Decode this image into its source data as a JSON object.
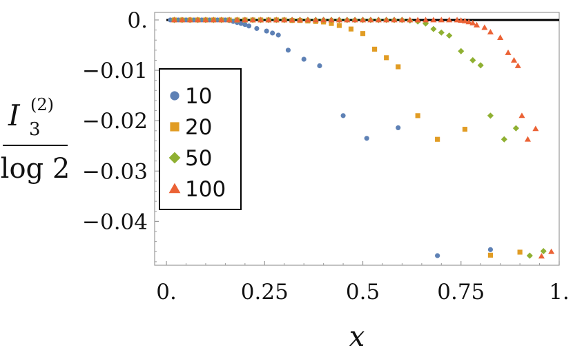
{
  "chart_data": {
    "type": "scatter",
    "xlabel": "x",
    "ylabel": {
      "symbol": "I",
      "subscript": "3",
      "superscript": "(2)",
      "denominator": "log 2"
    },
    "xlim": [
      -0.03,
      1.0
    ],
    "ylim": [
      -0.0487,
      0.0015
    ],
    "x_ticks": [
      0,
      0.25,
      0.5,
      0.75,
      1.0
    ],
    "x_tick_labels": [
      "0.",
      "0.25",
      "0.5",
      "0.75",
      "1."
    ],
    "y_ticks": [
      0,
      -0.01,
      -0.02,
      -0.03,
      -0.04
    ],
    "y_tick_labels": [
      "0.",
      "−0.01",
      "−0.02",
      "−0.03",
      "−0.04"
    ],
    "grid": false,
    "legend": {
      "position": "left-center",
      "entries": [
        "10",
        "20",
        "50",
        "100"
      ]
    },
    "reference_line": {
      "y": 0,
      "color": "#000000"
    },
    "series": [
      {
        "name": "10",
        "marker": "circle",
        "color": "#5E81B5",
        "points": [
          [
            0.01,
            0
          ],
          [
            0.02,
            0
          ],
          [
            0.03,
            0
          ],
          [
            0.04,
            0
          ],
          [
            0.05,
            0
          ],
          [
            0.06,
            0
          ],
          [
            0.07,
            0
          ],
          [
            0.08,
            0
          ],
          [
            0.09,
            0
          ],
          [
            0.1,
            0
          ],
          [
            0.11,
            0
          ],
          [
            0.12,
            0
          ],
          [
            0.13,
            0
          ],
          [
            0.14,
            0
          ],
          [
            0.15,
            0
          ],
          [
            0.16,
            -0.0001
          ],
          [
            0.17,
            -0.0003
          ],
          [
            0.18,
            -0.0005
          ],
          [
            0.19,
            -0.0007
          ],
          [
            0.2,
            -0.0009
          ],
          [
            0.21,
            -0.0012
          ],
          [
            0.23,
            -0.0017
          ],
          [
            0.255,
            -0.0022
          ],
          [
            0.27,
            -0.0026
          ],
          [
            0.285,
            -0.003
          ],
          [
            0.31,
            -0.006
          ],
          [
            0.35,
            -0.0078
          ],
          [
            0.39,
            -0.0091
          ],
          [
            0.45,
            -0.019
          ],
          [
            0.51,
            -0.0235
          ],
          [
            0.59,
            -0.0214
          ],
          [
            0.69,
            -0.0468
          ],
          [
            0.825,
            -0.0456
          ]
        ]
      },
      {
        "name": "20",
        "marker": "square",
        "color": "#E19C24",
        "points": [
          [
            0.02,
            0
          ],
          [
            0.04,
            0
          ],
          [
            0.06,
            0
          ],
          [
            0.08,
            0
          ],
          [
            0.1,
            0
          ],
          [
            0.12,
            0
          ],
          [
            0.14,
            0
          ],
          [
            0.16,
            0
          ],
          [
            0.18,
            0
          ],
          [
            0.2,
            0
          ],
          [
            0.22,
            0
          ],
          [
            0.24,
            0
          ],
          [
            0.26,
            0
          ],
          [
            0.28,
            0
          ],
          [
            0.3,
            0
          ],
          [
            0.32,
            -0.0001
          ],
          [
            0.34,
            -0.0001
          ],
          [
            0.36,
            -0.0002
          ],
          [
            0.38,
            -0.0003
          ],
          [
            0.4,
            -0.0004
          ],
          [
            0.42,
            -0.0007
          ],
          [
            0.44,
            -0.0011
          ],
          [
            0.47,
            -0.0018
          ],
          [
            0.5,
            -0.0027
          ],
          [
            0.53,
            -0.0058
          ],
          [
            0.56,
            -0.0075
          ],
          [
            0.59,
            -0.0093
          ],
          [
            0.64,
            -0.019
          ],
          [
            0.69,
            -0.0237
          ],
          [
            0.76,
            -0.0217
          ],
          [
            0.825,
            -0.0467
          ],
          [
            0.9,
            -0.0461
          ]
        ]
      },
      {
        "name": "50",
        "marker": "diamond",
        "color": "#8FB032",
        "points": [
          [
            0.02,
            0
          ],
          [
            0.04,
            0
          ],
          [
            0.06,
            0
          ],
          [
            0.08,
            0
          ],
          [
            0.1,
            0
          ],
          [
            0.12,
            0
          ],
          [
            0.14,
            0
          ],
          [
            0.16,
            0
          ],
          [
            0.18,
            0
          ],
          [
            0.2,
            0
          ],
          [
            0.22,
            0
          ],
          [
            0.24,
            0
          ],
          [
            0.26,
            0
          ],
          [
            0.28,
            0
          ],
          [
            0.3,
            0
          ],
          [
            0.32,
            0
          ],
          [
            0.34,
            0
          ],
          [
            0.36,
            0
          ],
          [
            0.38,
            0
          ],
          [
            0.4,
            0
          ],
          [
            0.42,
            0
          ],
          [
            0.44,
            0
          ],
          [
            0.46,
            0
          ],
          [
            0.48,
            0
          ],
          [
            0.5,
            0
          ],
          [
            0.52,
            0
          ],
          [
            0.54,
            0
          ],
          [
            0.56,
            0
          ],
          [
            0.58,
            0
          ],
          [
            0.6,
            0
          ],
          [
            0.62,
            -0.0001
          ],
          [
            0.64,
            -0.0003
          ],
          [
            0.66,
            -0.0007
          ],
          [
            0.68,
            -0.0018
          ],
          [
            0.7,
            -0.0025
          ],
          [
            0.72,
            -0.0031
          ],
          [
            0.75,
            -0.0062
          ],
          [
            0.78,
            -0.008
          ],
          [
            0.8,
            -0.009
          ],
          [
            0.825,
            -0.019
          ],
          [
            0.86,
            -0.0237
          ],
          [
            0.89,
            -0.0215
          ],
          [
            0.925,
            -0.0468
          ],
          [
            0.96,
            -0.0459
          ]
        ]
      },
      {
        "name": "100",
        "marker": "triangle",
        "color": "#EB6235",
        "points": [
          [
            0.02,
            0
          ],
          [
            0.04,
            0
          ],
          [
            0.06,
            0
          ],
          [
            0.08,
            0
          ],
          [
            0.1,
            0
          ],
          [
            0.12,
            0
          ],
          [
            0.14,
            0
          ],
          [
            0.16,
            0
          ],
          [
            0.18,
            0
          ],
          [
            0.2,
            0
          ],
          [
            0.22,
            0
          ],
          [
            0.24,
            0
          ],
          [
            0.26,
            0
          ],
          [
            0.28,
            0
          ],
          [
            0.3,
            0
          ],
          [
            0.32,
            0
          ],
          [
            0.34,
            0
          ],
          [
            0.36,
            0
          ],
          [
            0.38,
            0
          ],
          [
            0.4,
            0
          ],
          [
            0.42,
            0
          ],
          [
            0.44,
            0
          ],
          [
            0.46,
            0
          ],
          [
            0.48,
            0
          ],
          [
            0.5,
            0
          ],
          [
            0.52,
            0
          ],
          [
            0.54,
            0
          ],
          [
            0.56,
            0
          ],
          [
            0.58,
            0
          ],
          [
            0.6,
            0
          ],
          [
            0.62,
            0
          ],
          [
            0.64,
            0
          ],
          [
            0.66,
            0
          ],
          [
            0.68,
            0
          ],
          [
            0.7,
            0
          ],
          [
            0.72,
            0
          ],
          [
            0.74,
            0
          ],
          [
            0.75,
            -0.0001
          ],
          [
            0.76,
            -0.0002
          ],
          [
            0.77,
            -0.0004
          ],
          [
            0.78,
            -0.0006
          ],
          [
            0.79,
            -0.001
          ],
          [
            0.81,
            -0.0015
          ],
          [
            0.825,
            -0.0024
          ],
          [
            0.85,
            -0.0035
          ],
          [
            0.87,
            -0.0065
          ],
          [
            0.885,
            -0.008
          ],
          [
            0.895,
            -0.0091
          ],
          [
            0.905,
            -0.019
          ],
          [
            0.92,
            -0.0237
          ],
          [
            0.94,
            -0.0216
          ],
          [
            0.955,
            -0.0469
          ],
          [
            0.98,
            -0.046
          ]
        ]
      }
    ]
  }
}
